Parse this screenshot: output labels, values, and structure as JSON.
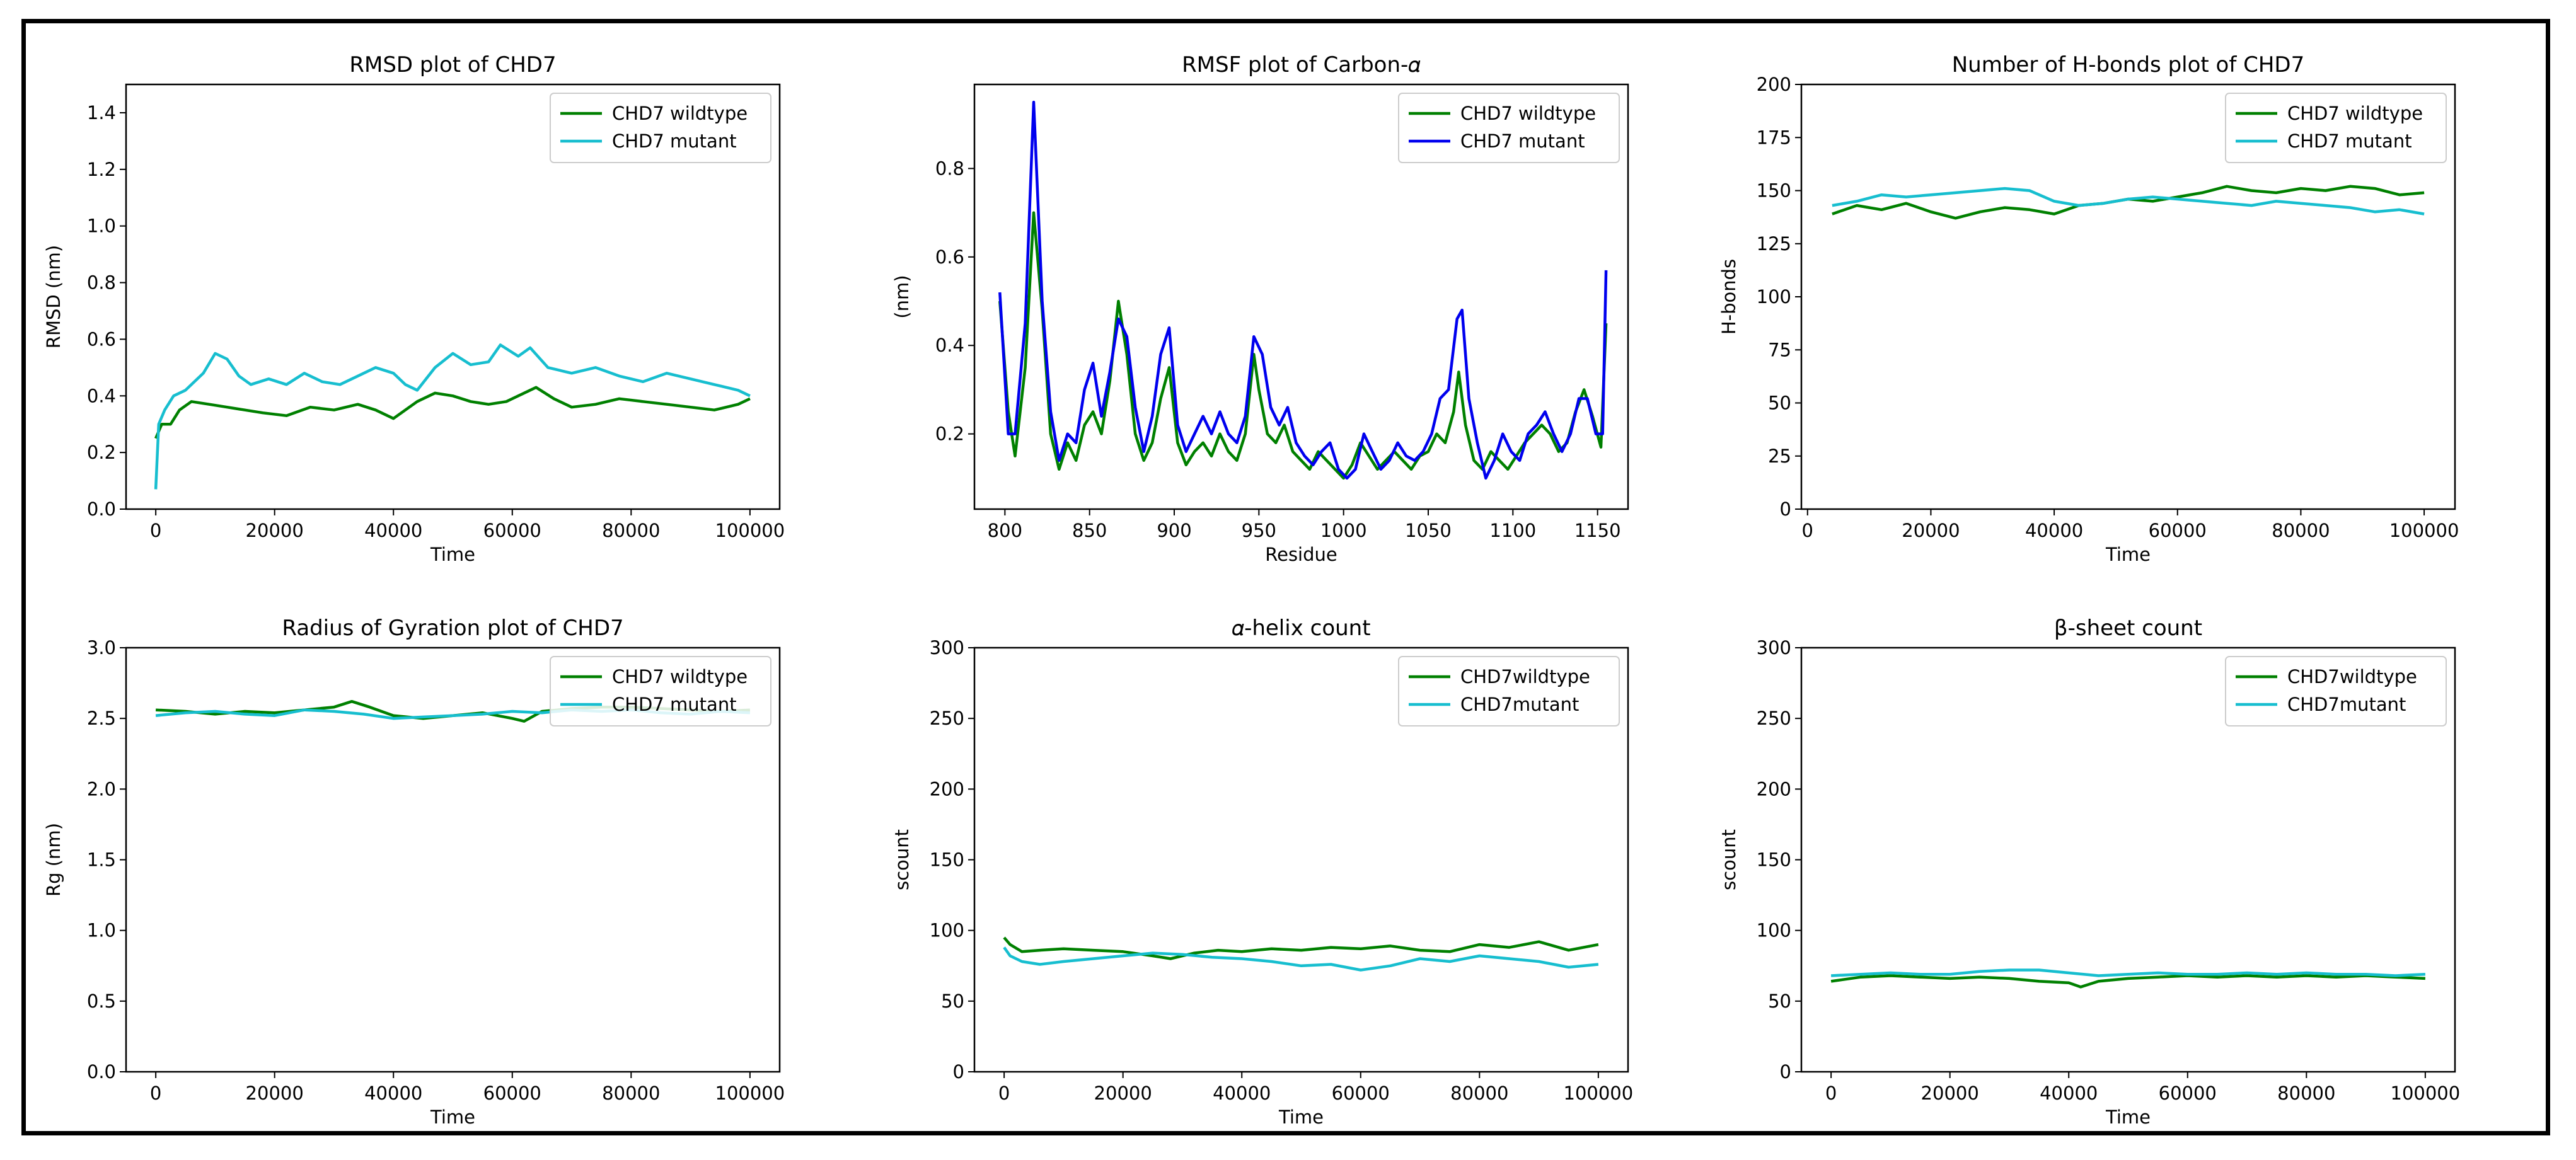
{
  "chart_data": [
    {
      "id": "rmsd",
      "type": "line",
      "title": "RMSD plot of CHD7",
      "xlabel": "Time",
      "ylabel": "RMSD (nm)",
      "xlim": [
        -5000,
        105000
      ],
      "ylim": [
        0.0,
        1.5
      ],
      "xticks": [
        0,
        20000,
        40000,
        60000,
        80000,
        100000
      ],
      "yticks": [
        0.0,
        0.2,
        0.4,
        0.6,
        0.8,
        1.0,
        1.2,
        1.4
      ],
      "ytick_decimals": 1,
      "legend": "top-right",
      "series": [
        {
          "name": "CHD7 wildtype",
          "color": "#008000",
          "x": [
            0,
            1000,
            2500,
            4000,
            6000,
            9000,
            12000,
            15000,
            18000,
            22000,
            26000,
            30000,
            34000,
            37000,
            40000,
            42000,
            44000,
            47000,
            50000,
            53000,
            56000,
            59000,
            62000,
            64000,
            67000,
            70000,
            74000,
            78000,
            82000,
            86000,
            90000,
            94000,
            98000,
            100000
          ],
          "y": [
            0.25,
            0.3,
            0.3,
            0.35,
            0.38,
            0.37,
            0.36,
            0.35,
            0.34,
            0.33,
            0.36,
            0.35,
            0.37,
            0.35,
            0.32,
            0.35,
            0.38,
            0.41,
            0.4,
            0.38,
            0.37,
            0.38,
            0.41,
            0.43,
            0.39,
            0.36,
            0.37,
            0.39,
            0.38,
            0.37,
            0.36,
            0.35,
            0.37,
            0.39
          ]
        },
        {
          "name": "CHD7 mutant",
          "color": "#17becf",
          "x": [
            0,
            500,
            1500,
            3000,
            5000,
            8000,
            10000,
            12000,
            14000,
            16000,
            19000,
            22000,
            25000,
            28000,
            31000,
            34000,
            37000,
            40000,
            42000,
            44000,
            47000,
            50000,
            53000,
            56000,
            58000,
            61000,
            63000,
            66000,
            70000,
            74000,
            78000,
            82000,
            86000,
            90000,
            94000,
            98000,
            100000
          ],
          "y": [
            0.07,
            0.3,
            0.35,
            0.4,
            0.42,
            0.48,
            0.55,
            0.53,
            0.47,
            0.44,
            0.46,
            0.44,
            0.48,
            0.45,
            0.44,
            0.47,
            0.5,
            0.48,
            0.44,
            0.42,
            0.5,
            0.55,
            0.51,
            0.52,
            0.58,
            0.54,
            0.57,
            0.5,
            0.48,
            0.5,
            0.47,
            0.45,
            0.48,
            0.46,
            0.44,
            0.42,
            0.4
          ]
        }
      ]
    },
    {
      "id": "rmsf",
      "type": "line",
      "title": "RMSF plot of Carbon-𝛼",
      "xlabel": "Residue",
      "ylabel": "(nm)",
      "xlim": [
        782,
        1168
      ],
      "ylim": [
        0.03,
        0.99
      ],
      "xticks": [
        800,
        850,
        900,
        950,
        1000,
        1050,
        1100,
        1150
      ],
      "yticks": [
        0.2,
        0.4,
        0.6,
        0.8
      ],
      "ytick_decimals": 1,
      "legend": "top-right",
      "series": [
        {
          "name": "CHD7 wildtype",
          "color": "#008000",
          "x": [
            797,
            802,
            806,
            812,
            817,
            822,
            827,
            832,
            837,
            842,
            847,
            852,
            857,
            862,
            867,
            872,
            877,
            882,
            887,
            892,
            897,
            902,
            907,
            912,
            917,
            922,
            927,
            932,
            937,
            942,
            947,
            950,
            955,
            960,
            965,
            970,
            975,
            980,
            985,
            990,
            995,
            1000,
            1005,
            1010,
            1015,
            1020,
            1025,
            1030,
            1035,
            1040,
            1045,
            1050,
            1055,
            1060,
            1065,
            1068,
            1072,
            1077,
            1082,
            1087,
            1092,
            1097,
            1102,
            1107,
            1112,
            1117,
            1122,
            1127,
            1132,
            1137,
            1142,
            1147,
            1152,
            1155
          ],
          "y": [
            0.5,
            0.25,
            0.15,
            0.35,
            0.7,
            0.48,
            0.2,
            0.12,
            0.18,
            0.14,
            0.22,
            0.25,
            0.2,
            0.32,
            0.5,
            0.38,
            0.2,
            0.14,
            0.18,
            0.28,
            0.35,
            0.18,
            0.13,
            0.16,
            0.18,
            0.15,
            0.2,
            0.16,
            0.14,
            0.2,
            0.38,
            0.3,
            0.2,
            0.18,
            0.22,
            0.16,
            0.14,
            0.12,
            0.16,
            0.14,
            0.12,
            0.1,
            0.13,
            0.18,
            0.15,
            0.12,
            0.14,
            0.16,
            0.14,
            0.12,
            0.15,
            0.16,
            0.2,
            0.18,
            0.25,
            0.34,
            0.22,
            0.14,
            0.12,
            0.16,
            0.14,
            0.12,
            0.15,
            0.18,
            0.2,
            0.22,
            0.2,
            0.16,
            0.18,
            0.25,
            0.3,
            0.24,
            0.17,
            0.45
          ]
        },
        {
          "name": "CHD7 mutant",
          "color": "#0000ee",
          "x": [
            797,
            802,
            806,
            812,
            817,
            822,
            827,
            832,
            837,
            842,
            847,
            852,
            857,
            862,
            867,
            872,
            877,
            882,
            887,
            892,
            897,
            902,
            907,
            912,
            917,
            922,
            927,
            932,
            937,
            942,
            947,
            952,
            957,
            962,
            967,
            972,
            977,
            982,
            987,
            992,
            997,
            1002,
            1007,
            1012,
            1017,
            1022,
            1027,
            1032,
            1037,
            1042,
            1047,
            1052,
            1057,
            1062,
            1067,
            1070,
            1074,
            1079,
            1084,
            1089,
            1094,
            1099,
            1104,
            1109,
            1114,
            1119,
            1124,
            1129,
            1134,
            1139,
            1144,
            1149,
            1153,
            1155
          ],
          "y": [
            0.52,
            0.2,
            0.2,
            0.45,
            0.95,
            0.5,
            0.25,
            0.14,
            0.2,
            0.18,
            0.3,
            0.36,
            0.24,
            0.34,
            0.46,
            0.42,
            0.26,
            0.16,
            0.24,
            0.38,
            0.44,
            0.22,
            0.16,
            0.2,
            0.24,
            0.2,
            0.25,
            0.2,
            0.18,
            0.24,
            0.42,
            0.38,
            0.26,
            0.22,
            0.26,
            0.18,
            0.15,
            0.13,
            0.16,
            0.18,
            0.12,
            0.1,
            0.12,
            0.2,
            0.16,
            0.12,
            0.14,
            0.18,
            0.15,
            0.14,
            0.16,
            0.2,
            0.28,
            0.3,
            0.46,
            0.48,
            0.28,
            0.18,
            0.1,
            0.14,
            0.2,
            0.16,
            0.14,
            0.2,
            0.22,
            0.25,
            0.2,
            0.16,
            0.2,
            0.28,
            0.28,
            0.2,
            0.2,
            0.57
          ]
        }
      ]
    },
    {
      "id": "hbonds",
      "type": "line",
      "title": "Number of H-bonds plot of CHD7",
      "xlabel": "Time",
      "ylabel": "H-bonds",
      "xlim": [
        -1000,
        105000
      ],
      "ylim": [
        0,
        200
      ],
      "xticks": [
        0,
        20000,
        40000,
        60000,
        80000,
        100000
      ],
      "yticks": [
        0,
        25,
        50,
        75,
        100,
        125,
        150,
        175,
        200
      ],
      "ytick_decimals": 0,
      "legend": "top-right",
      "series": [
        {
          "name": "CHD7 wildtype",
          "color": "#008000",
          "x": [
            4000,
            8000,
            12000,
            16000,
            20000,
            24000,
            28000,
            32000,
            36000,
            40000,
            44000,
            48000,
            52000,
            56000,
            60000,
            64000,
            68000,
            72000,
            76000,
            80000,
            84000,
            88000,
            92000,
            96000,
            100000
          ],
          "y": [
            139,
            143,
            141,
            144,
            140,
            137,
            140,
            142,
            141,
            139,
            143,
            144,
            146,
            145,
            147,
            149,
            152,
            150,
            149,
            151,
            150,
            152,
            151,
            148,
            149
          ]
        },
        {
          "name": "CHD7 mutant",
          "color": "#17becf",
          "x": [
            4000,
            8000,
            12000,
            16000,
            20000,
            24000,
            28000,
            32000,
            36000,
            40000,
            44000,
            48000,
            52000,
            56000,
            60000,
            64000,
            68000,
            72000,
            76000,
            80000,
            84000,
            88000,
            92000,
            96000,
            100000
          ],
          "y": [
            143,
            145,
            148,
            147,
            148,
            149,
            150,
            151,
            150,
            145,
            143,
            144,
            146,
            147,
            146,
            145,
            144,
            143,
            145,
            144,
            143,
            142,
            140,
            141,
            139
          ]
        }
      ]
    },
    {
      "id": "rg",
      "type": "line",
      "title": "Radius of Gyration plot of CHD7",
      "xlabel": "Time",
      "ylabel": "Rg (nm)",
      "xlim": [
        -5000,
        105000
      ],
      "ylim": [
        0.0,
        3.0
      ],
      "xticks": [
        0,
        20000,
        40000,
        60000,
        80000,
        100000
      ],
      "yticks": [
        0.0,
        0.5,
        1.0,
        1.5,
        2.0,
        2.5,
        3.0
      ],
      "ytick_decimals": 1,
      "legend": "top-right",
      "series": [
        {
          "name": "CHD7 wildtype",
          "color": "#008000",
          "x": [
            0,
            5000,
            10000,
            15000,
            20000,
            25000,
            30000,
            33000,
            36000,
            40000,
            45000,
            50000,
            55000,
            60000,
            62000,
            65000,
            70000,
            75000,
            80000,
            85000,
            90000,
            95000,
            100000
          ],
          "y": [
            2.56,
            2.55,
            2.53,
            2.55,
            2.54,
            2.56,
            2.58,
            2.62,
            2.58,
            2.52,
            2.5,
            2.52,
            2.54,
            2.5,
            2.48,
            2.55,
            2.57,
            2.58,
            2.58,
            2.57,
            2.56,
            2.55,
            2.56
          ]
        },
        {
          "name": "CHD7 mutant",
          "color": "#17becf",
          "x": [
            0,
            5000,
            10000,
            15000,
            20000,
            25000,
            30000,
            35000,
            40000,
            45000,
            50000,
            55000,
            60000,
            65000,
            70000,
            75000,
            80000,
            85000,
            90000,
            95000,
            100000
          ],
          "y": [
            2.52,
            2.54,
            2.55,
            2.53,
            2.52,
            2.56,
            2.55,
            2.53,
            2.5,
            2.51,
            2.52,
            2.53,
            2.55,
            2.54,
            2.56,
            2.55,
            2.56,
            2.54,
            2.53,
            2.55,
            2.54
          ]
        }
      ]
    },
    {
      "id": "helix",
      "type": "line",
      "title": "𝛼-helix count",
      "xlabel": "Time",
      "ylabel": "scount",
      "xlim": [
        -5000,
        105000
      ],
      "ylim": [
        0,
        300
      ],
      "xticks": [
        0,
        20000,
        40000,
        60000,
        80000,
        100000
      ],
      "yticks": [
        0,
        50,
        100,
        150,
        200,
        250,
        300
      ],
      "ytick_decimals": 0,
      "legend": "top-right",
      "series": [
        {
          "name": "CHD7wildtype",
          "color": "#008000",
          "x": [
            0,
            1000,
            3000,
            6000,
            10000,
            15000,
            20000,
            25000,
            28000,
            32000,
            36000,
            40000,
            45000,
            50000,
            55000,
            60000,
            65000,
            70000,
            75000,
            80000,
            85000,
            90000,
            95000,
            100000
          ],
          "y": [
            95,
            90,
            85,
            86,
            87,
            86,
            85,
            82,
            80,
            84,
            86,
            85,
            87,
            86,
            88,
            87,
            89,
            86,
            85,
            90,
            88,
            92,
            86,
            90
          ]
        },
        {
          "name": "CHD7mutant",
          "color": "#17becf",
          "x": [
            0,
            1000,
            3000,
            6000,
            10000,
            15000,
            20000,
            25000,
            30000,
            35000,
            40000,
            45000,
            50000,
            55000,
            60000,
            65000,
            70000,
            75000,
            80000,
            85000,
            90000,
            95000,
            100000
          ],
          "y": [
            88,
            82,
            78,
            76,
            78,
            80,
            82,
            84,
            83,
            81,
            80,
            78,
            75,
            76,
            72,
            75,
            80,
            78,
            82,
            80,
            78,
            74,
            76
          ]
        }
      ]
    },
    {
      "id": "sheet",
      "type": "line",
      "title": "β-sheet count",
      "xlabel": "Time",
      "ylabel": "scount",
      "xlim": [
        -5000,
        105000
      ],
      "ylim": [
        0,
        300
      ],
      "xticks": [
        0,
        20000,
        40000,
        60000,
        80000,
        100000
      ],
      "yticks": [
        0,
        50,
        100,
        150,
        200,
        250,
        300
      ],
      "ytick_decimals": 0,
      "legend": "top-right",
      "series": [
        {
          "name": "CHD7wildtype",
          "color": "#008000",
          "x": [
            0,
            5000,
            10000,
            15000,
            20000,
            25000,
            30000,
            35000,
            40000,
            42000,
            45000,
            50000,
            55000,
            60000,
            65000,
            70000,
            75000,
            80000,
            85000,
            90000,
            95000,
            100000
          ],
          "y": [
            64,
            67,
            68,
            67,
            66,
            67,
            66,
            64,
            63,
            60,
            64,
            66,
            67,
            68,
            67,
            68,
            67,
            68,
            67,
            68,
            67,
            66
          ]
        },
        {
          "name": "CHD7mutant",
          "color": "#17becf",
          "x": [
            0,
            5000,
            10000,
            15000,
            20000,
            25000,
            30000,
            35000,
            40000,
            45000,
            50000,
            55000,
            60000,
            65000,
            70000,
            75000,
            80000,
            85000,
            90000,
            95000,
            100000
          ],
          "y": [
            68,
            69,
            70,
            69,
            69,
            71,
            72,
            72,
            70,
            68,
            69,
            70,
            69,
            69,
            70,
            69,
            70,
            69,
            69,
            68,
            69
          ]
        }
      ]
    }
  ]
}
